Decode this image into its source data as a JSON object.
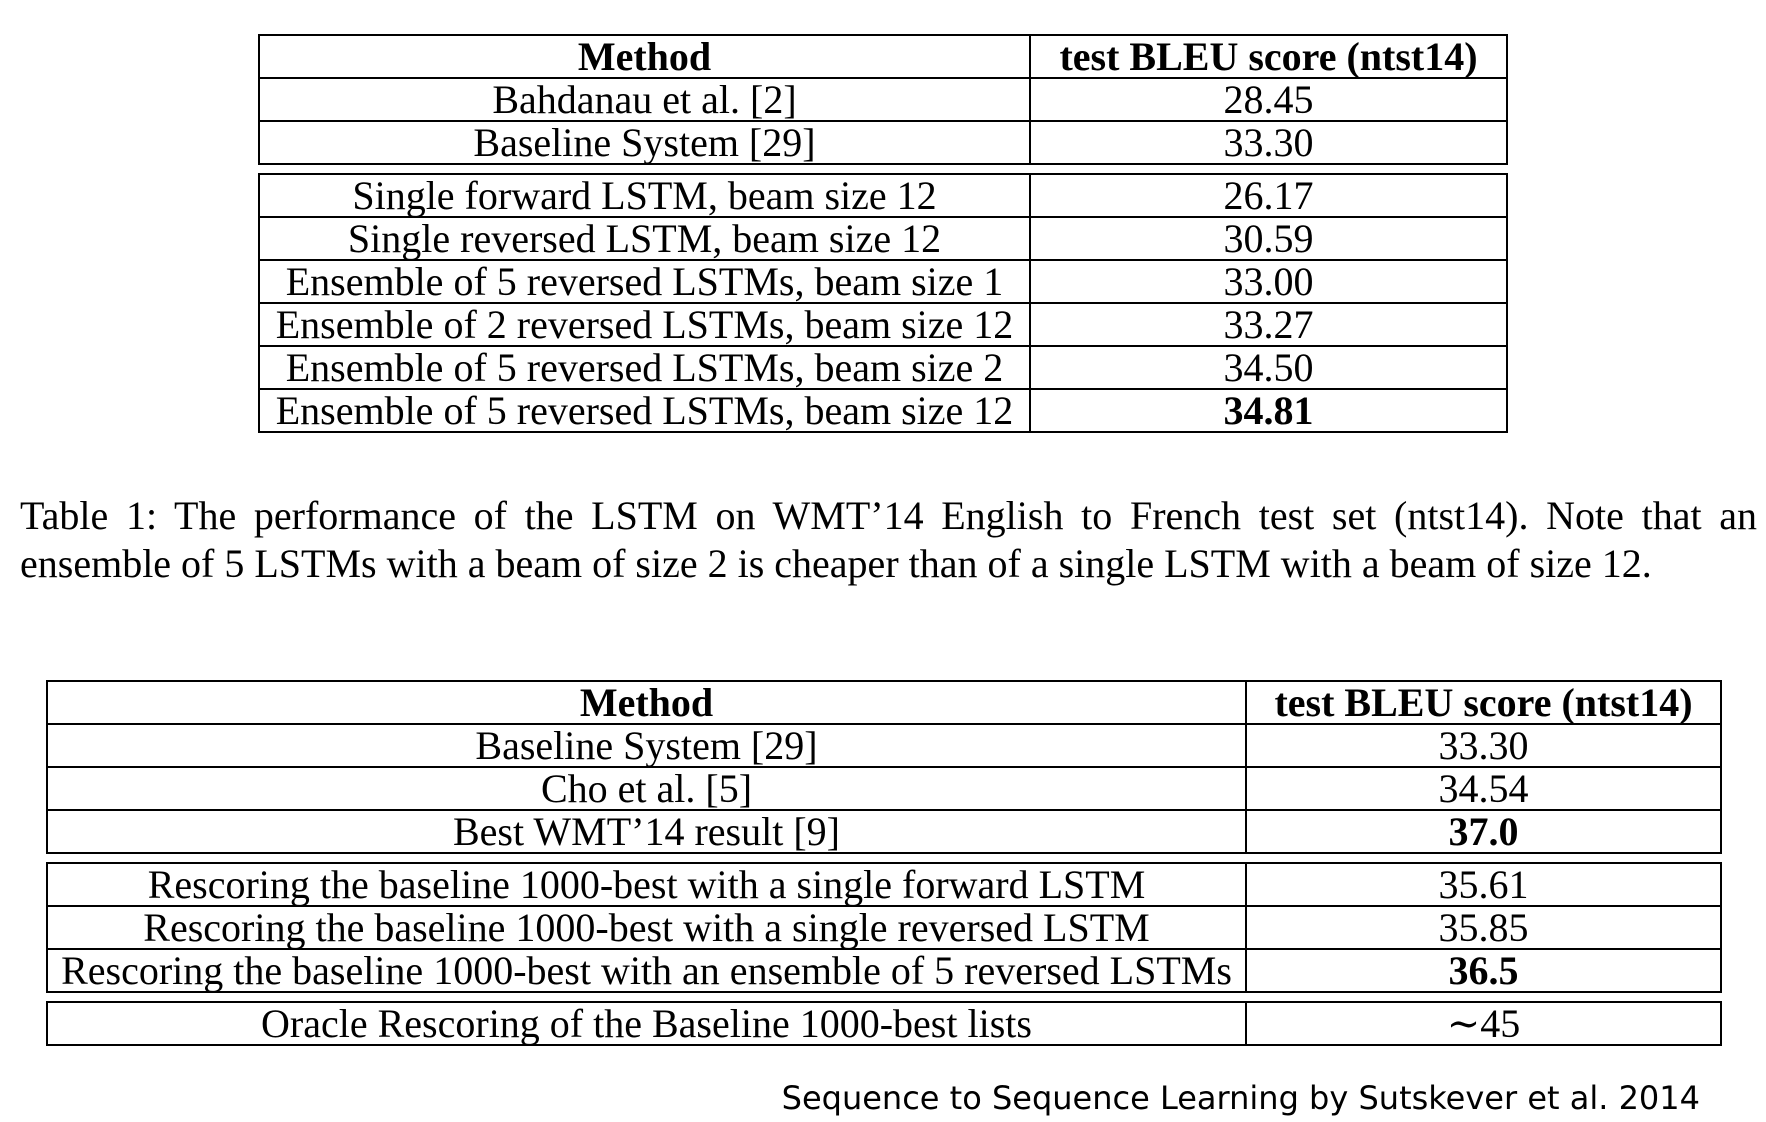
{
  "table1": {
    "headers": {
      "method": "Method",
      "score": "test BLEU score (ntst14)"
    },
    "groups": [
      [
        {
          "method": "Bahdanau et al. [2]",
          "score": "28.45",
          "bold": false
        },
        {
          "method": "Baseline System [29]",
          "score": "33.30",
          "bold": false
        }
      ],
      [
        {
          "method": "Single forward LSTM, beam size 12",
          "score": "26.17",
          "bold": false
        },
        {
          "method": "Single reversed LSTM, beam size 12",
          "score": "30.59",
          "bold": false
        },
        {
          "method": "Ensemble of 5 reversed LSTMs, beam size 1",
          "score": "33.00",
          "bold": false
        },
        {
          "method": "Ensemble of 2 reversed LSTMs, beam size 12",
          "score": "33.27",
          "bold": false
        },
        {
          "method": "Ensemble of 5 reversed LSTMs, beam size 2",
          "score": "34.50",
          "bold": false
        },
        {
          "method": "Ensemble of 5 reversed LSTMs, beam size 12",
          "score": "34.81",
          "bold": true
        }
      ]
    ]
  },
  "caption": "Table 1: The performance of the LSTM on WMT’14 English to French test set (ntst14). Note that an ensemble of 5 LSTMs with a beam of size 2 is cheaper than of a single LSTM with a beam of size 12.",
  "table2": {
    "headers": {
      "method": "Method",
      "score": "test BLEU score (ntst14)"
    },
    "groups": [
      [
        {
          "method": "Baseline System [29]",
          "score": "33.30",
          "bold": false
        },
        {
          "method": "Cho et al. [5]",
          "score": "34.54",
          "bold": false
        },
        {
          "method": "Best WMT’14 result [9]",
          "score": "37.0",
          "bold": true
        }
      ],
      [
        {
          "method": "Rescoring the baseline 1000-best with a single forward LSTM",
          "score": "35.61",
          "bold": false
        },
        {
          "method": "Rescoring the baseline 1000-best with a single reversed LSTM",
          "score": "35.85",
          "bold": false
        },
        {
          "method": "Rescoring the baseline 1000-best with an ensemble of 5 reversed LSTMs",
          "score": "36.5",
          "bold": true
        }
      ],
      [
        {
          "method": "Oracle Rescoring of the Baseline 1000-best lists",
          "score": "∼45",
          "bold": false
        }
      ]
    ]
  },
  "credit": "Sequence to Sequence Learning by Sutskever et al. 2014"
}
